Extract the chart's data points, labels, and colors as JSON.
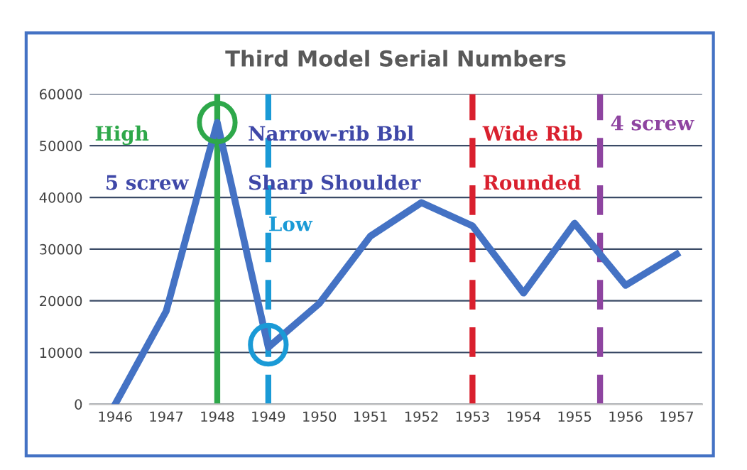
{
  "chart_data": {
    "type": "line",
    "title": "Third Model Serial Numbers",
    "x": [
      1946,
      1947,
      1948,
      1949,
      1950,
      1951,
      1952,
      1953,
      1954,
      1955,
      1956,
      1957
    ],
    "series": [
      {
        "color": "#4472c4",
        "values": [
          0,
          18000,
          54500,
          11000,
          19500,
          32500,
          39000,
          34500,
          21500,
          35000,
          23000,
          29000
        ]
      }
    ],
    "xlim": [
      1945.5,
      1957.5
    ],
    "xticks": [
      1946,
      1947,
      1948,
      1949,
      1950,
      1951,
      1952,
      1953,
      1954,
      1955,
      1956,
      1957
    ],
    "ylim": [
      0,
      60000
    ],
    "yticks": [
      0,
      10000,
      20000,
      30000,
      40000,
      50000,
      60000
    ],
    "grid": "y",
    "marker": "none",
    "line_style": "solid",
    "ref_lines": [
      {
        "axis": "x",
        "value": 1948,
        "color": "#2ea84a",
        "line_style": "solid"
      },
      {
        "axis": "x",
        "value": 1949,
        "color": "#1a9ad6",
        "line_style": "dashed"
      },
      {
        "axis": "x",
        "value": 1953,
        "color": "#d9202e",
        "line_style": "dashed"
      },
      {
        "axis": "x",
        "value": 1955.5,
        "color": "#8e44a0",
        "line_style": "dashed"
      }
    ],
    "annotations": [
      "High",
      "5 screw",
      "Narrow-rib Bbl",
      "Sharp Shoulder",
      "Low",
      "Wide Rib",
      "Rounded",
      "4 screw"
    ]
  }
}
